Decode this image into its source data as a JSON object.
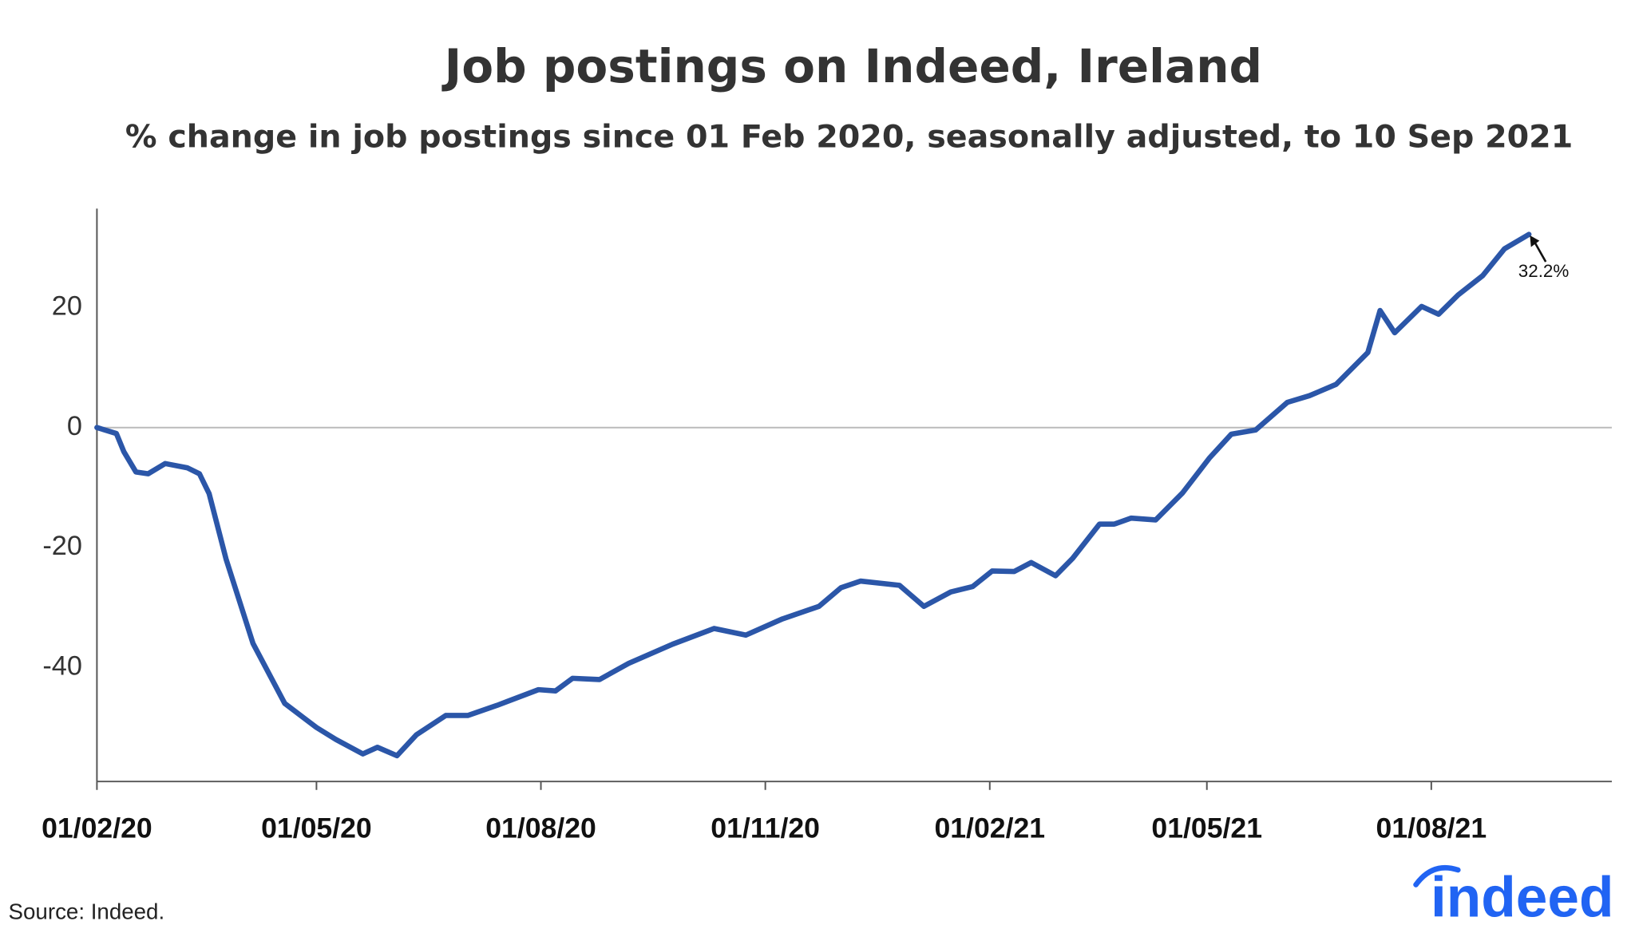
{
  "chart_data": {
    "type": "line",
    "title": "Job postings on Indeed, Ireland",
    "subtitle": "% change in job postings since 01 Feb 2020, seasonally adjusted, to 10 Sep 2021",
    "source": "Source: Indeed.",
    "logo": "indeed",
    "x": [
      "2020-02-01",
      "2020-02-09",
      "2020-02-12",
      "2020-02-17",
      "2020-02-22",
      "2020-02-29",
      "2020-03-09",
      "2020-03-14",
      "2020-03-18",
      "2020-03-25",
      "2020-04-05",
      "2020-04-18",
      "2020-05-01",
      "2020-05-09",
      "2020-05-20",
      "2020-05-26",
      "2020-06-03",
      "2020-06-11",
      "2020-06-23",
      "2020-07-02",
      "2020-07-14",
      "2020-07-31",
      "2020-08-07",
      "2020-08-14",
      "2020-08-25",
      "2020-09-06",
      "2020-09-24",
      "2020-10-11",
      "2020-10-24",
      "2020-11-08",
      "2020-11-23",
      "2020-12-02",
      "2020-12-10",
      "2020-12-26",
      "2021-01-05",
      "2021-01-16",
      "2021-01-25",
      "2021-02-02",
      "2021-02-11",
      "2021-02-18",
      "2021-02-28",
      "2021-03-07",
      "2021-03-18",
      "2021-03-24",
      "2021-03-31",
      "2021-04-10",
      "2021-04-21",
      "2021-05-02",
      "2021-05-11",
      "2021-05-21",
      "2021-06-03",
      "2021-06-12",
      "2021-06-23",
      "2021-07-06",
      "2021-07-11",
      "2021-07-17",
      "2021-07-28",
      "2021-08-04",
      "2021-08-12",
      "2021-08-22",
      "2021-08-31",
      "2021-09-10"
    ],
    "series": [
      {
        "name": "Ireland",
        "color": "#2b56a8",
        "values": [
          0,
          -1,
          -4,
          -7.4,
          -7.7,
          -6,
          -6.7,
          -7.7,
          -11,
          -22,
          -36,
          -46,
          -50,
          -52,
          -54.4,
          -53.3,
          -54.7,
          -51.2,
          -48,
          -48,
          -46.3,
          -43.7,
          -43.9,
          -41.8,
          -42,
          -39.3,
          -36.1,
          -33.5,
          -34.6,
          -31.9,
          -29.8,
          -26.7,
          -25.6,
          -26.3,
          -29.8,
          -27.4,
          -26.5,
          -23.9,
          -24,
          -22.5,
          -24.7,
          -21.8,
          -16.1,
          -16.1,
          -15.1,
          -15.4,
          -10.9,
          -5.1,
          -1.1,
          -0.4,
          4.2,
          5.3,
          7.2,
          12.5,
          19.5,
          15.8,
          20.2,
          18.9,
          22.1,
          25.3,
          29.8,
          32.2
        ]
      }
    ],
    "annotation": {
      "text": "32.2%",
      "x": "2021-09-10",
      "y": 32.2
    },
    "xlim": [
      "2020-02-01",
      "2021-10-14"
    ],
    "xticks": [
      {
        "value": "2020-02-01",
        "label": "01/02/20"
      },
      {
        "value": "2020-05-01",
        "label": "01/05/20"
      },
      {
        "value": "2020-08-01",
        "label": "01/08/20"
      },
      {
        "value": "2020-11-01",
        "label": "01/11/20"
      },
      {
        "value": "2021-02-01",
        "label": "01/02/21"
      },
      {
        "value": "2021-05-01",
        "label": "01/05/21"
      },
      {
        "value": "2021-08-01",
        "label": "01/08/21"
      }
    ],
    "ylim": [
      -59,
      36.5
    ],
    "yticks": [
      -40,
      -20,
      0,
      20
    ],
    "zero_line": true
  }
}
